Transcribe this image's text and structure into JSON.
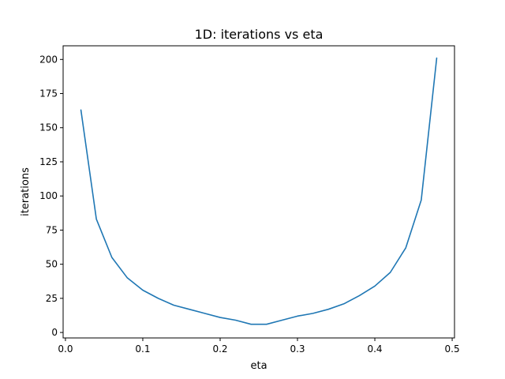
{
  "chart_data": {
    "type": "line",
    "title": "1D: iterations vs eta",
    "xlabel": "eta",
    "ylabel": "iterations",
    "xlim": [
      -0.003,
      0.503
    ],
    "ylim": [
      -4,
      210
    ],
    "xticks": [
      0.0,
      0.1,
      0.2,
      0.3,
      0.4,
      0.5
    ],
    "xtick_labels": [
      "0.0",
      "0.1",
      "0.2",
      "0.3",
      "0.4",
      "0.5"
    ],
    "yticks": [
      0,
      25,
      50,
      75,
      100,
      125,
      150,
      175,
      200
    ],
    "ytick_labels": [
      "0",
      "25",
      "50",
      "75",
      "100",
      "125",
      "150",
      "175",
      "200"
    ],
    "grid": false,
    "series": [
      {
        "color": "#1f77b4",
        "x": [
          0.02,
          0.04,
          0.06,
          0.08,
          0.1,
          0.12,
          0.14,
          0.16,
          0.18,
          0.2,
          0.22,
          0.24,
          0.26,
          0.28,
          0.3,
          0.32,
          0.34,
          0.36,
          0.38,
          0.4,
          0.42,
          0.44,
          0.46,
          0.48
        ],
        "y": [
          163,
          83,
          55,
          40,
          31,
          25,
          20,
          17,
          14,
          11,
          9,
          6,
          6,
          9,
          12,
          14,
          17,
          21,
          27,
          34,
          44,
          62,
          97,
          201
        ]
      }
    ]
  }
}
